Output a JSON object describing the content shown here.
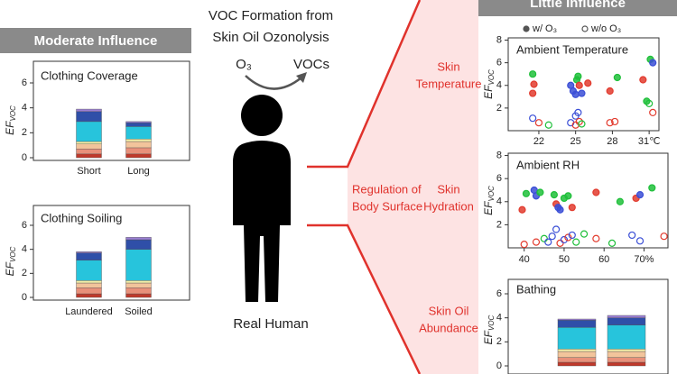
{
  "sections": {
    "moderate": "Moderate Influence",
    "little": "Little Influence"
  },
  "center": {
    "title": [
      "VOC Formation from",
      "Skin Oil Ozonolysis"
    ],
    "reactant": "O₃",
    "product": "VOCs",
    "subject": "Real Human",
    "regulation": [
      "Regulation of",
      "Body Surface"
    ],
    "factors": [
      [
        "Skin",
        "Temperature"
      ],
      [
        "Skin",
        "Hydration"
      ],
      [
        "Skin Oil",
        "Abundance"
      ]
    ]
  },
  "chart_data": [
    {
      "type": "stacked_bar",
      "title": "Clothing Coverage",
      "ylabel": "EF",
      "ylabel_sub": "VOC",
      "categories": [
        "Short",
        "Long"
      ],
      "ylim": [
        0,
        6
      ],
      "yticks": [
        0,
        2,
        4,
        6
      ],
      "series": [
        {
          "color": "#c0392b",
          "values": [
            0.3,
            0.3
          ]
        },
        {
          "color": "#e8907a",
          "values": [
            0.4,
            0.5
          ]
        },
        {
          "color": "#f2c49b",
          "values": [
            0.4,
            0.5
          ]
        },
        {
          "color": "#f5f0a8",
          "values": [
            0.2,
            0.2
          ]
        },
        {
          "color": "#27c4dc",
          "values": [
            1.6,
            1.0
          ]
        },
        {
          "color": "#2f4fa8",
          "values": [
            0.8,
            0.3
          ]
        },
        {
          "color": "#9b7fd4",
          "values": [
            0.2,
            0.1
          ]
        }
      ]
    },
    {
      "type": "stacked_bar",
      "title": "Clothing Soiling",
      "ylabel": "EF",
      "ylabel_sub": "VOC",
      "categories": [
        "Laundered",
        "Soiled"
      ],
      "ylim": [
        0,
        6
      ],
      "yticks": [
        0,
        2,
        4,
        6
      ],
      "series": [
        {
          "color": "#c0392b",
          "values": [
            0.3,
            0.3
          ]
        },
        {
          "color": "#e8907a",
          "values": [
            0.5,
            0.5
          ]
        },
        {
          "color": "#f2c49b",
          "values": [
            0.4,
            0.4
          ]
        },
        {
          "color": "#f5f0a8",
          "values": [
            0.2,
            0.2
          ]
        },
        {
          "color": "#27c4dc",
          "values": [
            1.7,
            2.6
          ]
        },
        {
          "color": "#2f4fa8",
          "values": [
            0.6,
            0.8
          ]
        },
        {
          "color": "#9b7fd4",
          "values": [
            0.1,
            0.2
          ]
        }
      ]
    },
    {
      "type": "scatter",
      "title": "Ambient Temperature",
      "ylabel": "EF",
      "ylabel_sub": "VOC",
      "xlim": [
        19.5,
        31.8
      ],
      "xticks": [
        22,
        25,
        28,
        {
          "value": 31,
          "label": "31℃"
        }
      ],
      "ylim": [
        0,
        8.2
      ],
      "yticks": [
        2,
        4,
        6,
        8
      ],
      "series": [
        {
          "name": "w/ O₃",
          "filled": true,
          "x": [
            21.5,
            21.6,
            21.5,
            24.6,
            24.8,
            25.1,
            25.2,
            25.3,
            25.5,
            25.0,
            26.0,
            27.8,
            28.4,
            30.5,
            31.1,
            31.3,
            30.8
          ],
          "y": [
            5.0,
            4.1,
            3.3,
            4.0,
            3.5,
            4.5,
            4.8,
            4.0,
            3.3,
            3.2,
            4.2,
            3.5,
            4.7,
            4.5,
            6.3,
            6.0,
            2.6
          ],
          "colors": [
            "#1fbf3a",
            "#e23b2e",
            "#e23b2e",
            "#3b4fd6",
            "#3b4fd6",
            "#1fbf3a",
            "#1fbf3a",
            "#e23b2e",
            "#3b4fd6",
            "#3b4fd6",
            "#e23b2e",
            "#e23b2e",
            "#1fbf3a",
            "#e23b2e",
            "#1fbf3a",
            "#3b4fd6",
            "#1fbf3a"
          ]
        },
        {
          "name": "w/o O₃",
          "filled": false,
          "x": [
            21.5,
            22.0,
            22.8,
            24.6,
            25.0,
            25.2,
            25.0,
            25.3,
            25.5,
            27.8,
            28.2,
            31.0,
            31.3
          ],
          "y": [
            1.1,
            0.7,
            0.5,
            0.7,
            1.3,
            1.6,
            0.5,
            0.8,
            0.6,
            0.7,
            0.8,
            2.4,
            1.6
          ],
          "colors": [
            "#3b4fd6",
            "#e23b2e",
            "#1fbf3a",
            "#3b4fd6",
            "#3b4fd6",
            "#3b4fd6",
            "#e23b2e",
            "#e23b2e",
            "#1fbf3a",
            "#e23b2e",
            "#e23b2e",
            "#1fbf3a",
            "#e23b2e"
          ]
        }
      ]
    },
    {
      "type": "scatter",
      "title": "Ambient RH",
      "ylabel": "EF",
      "ylabel_sub": "VOC",
      "xlim": [
        36,
        76
      ],
      "xticks": [
        40,
        50,
        60,
        {
          "value": 70,
          "label": "70%"
        }
      ],
      "ylim": [
        0,
        8.2
      ],
      "yticks": [
        2,
        4,
        6,
        8
      ],
      "series": [
        {
          "filled": true,
          "x": [
            39.5,
            40.5,
            42.5,
            43,
            44,
            47.5,
            48,
            48.5,
            49,
            50,
            51,
            52,
            58,
            64,
            68,
            69,
            72
          ],
          "y": [
            3.3,
            4.7,
            5.0,
            4.5,
            4.8,
            4.6,
            3.8,
            3.5,
            3.3,
            4.3,
            4.5,
            3.5,
            4.8,
            4.0,
            4.3,
            4.6,
            5.2
          ],
          "colors": [
            "#e23b2e",
            "#1fbf3a",
            "#3b4fd6",
            "#3b4fd6",
            "#1fbf3a",
            "#1fbf3a",
            "#e23b2e",
            "#3b4fd6",
            "#3b4fd6",
            "#1fbf3a",
            "#1fbf3a",
            "#e23b2e",
            "#e23b2e",
            "#1fbf3a",
            "#e23b2e",
            "#3b4fd6",
            "#1fbf3a"
          ]
        },
        {
          "filled": false,
          "x": [
            40,
            43,
            45,
            46,
            47,
            48,
            49,
            50,
            51,
            52,
            53,
            55,
            58,
            62,
            67,
            69,
            75
          ],
          "y": [
            0.3,
            0.5,
            0.8,
            0.5,
            1.0,
            1.6,
            0.4,
            0.7,
            0.9,
            1.1,
            0.5,
            1.2,
            0.8,
            0.4,
            1.1,
            0.6,
            1.0
          ],
          "colors": [
            "#e23b2e",
            "#e23b2e",
            "#1fbf3a",
            "#3b4fd6",
            "#3b4fd6",
            "#3b4fd6",
            "#e23b2e",
            "#3b4fd6",
            "#e23b2e",
            "#3b4fd6",
            "#1fbf3a",
            "#1fbf3a",
            "#e23b2e",
            "#1fbf3a",
            "#3b4fd6",
            "#3b4fd6",
            "#e23b2e"
          ]
        }
      ]
    },
    {
      "type": "stacked_bar",
      "title": "Bathing",
      "ylabel": "EF",
      "ylabel_sub": "VOC",
      "categories": [
        null,
        null
      ],
      "ylim": [
        0,
        6
      ],
      "yticks": [
        0,
        2,
        4,
        6
      ],
      "series": [
        {
          "color": "#c0392b",
          "values": [
            0.3,
            0.3
          ]
        },
        {
          "color": "#e8907a",
          "values": [
            0.4,
            0.4
          ]
        },
        {
          "color": "#f2c49b",
          "values": [
            0.5,
            0.5
          ]
        },
        {
          "color": "#f5f0a8",
          "values": [
            0.2,
            0.2
          ]
        },
        {
          "color": "#27c4dc",
          "values": [
            1.8,
            2.0
          ]
        },
        {
          "color": "#2f4fa8",
          "values": [
            0.6,
            0.6
          ]
        },
        {
          "color": "#9b7fd4",
          "values": [
            0.1,
            0.2
          ]
        }
      ]
    }
  ]
}
